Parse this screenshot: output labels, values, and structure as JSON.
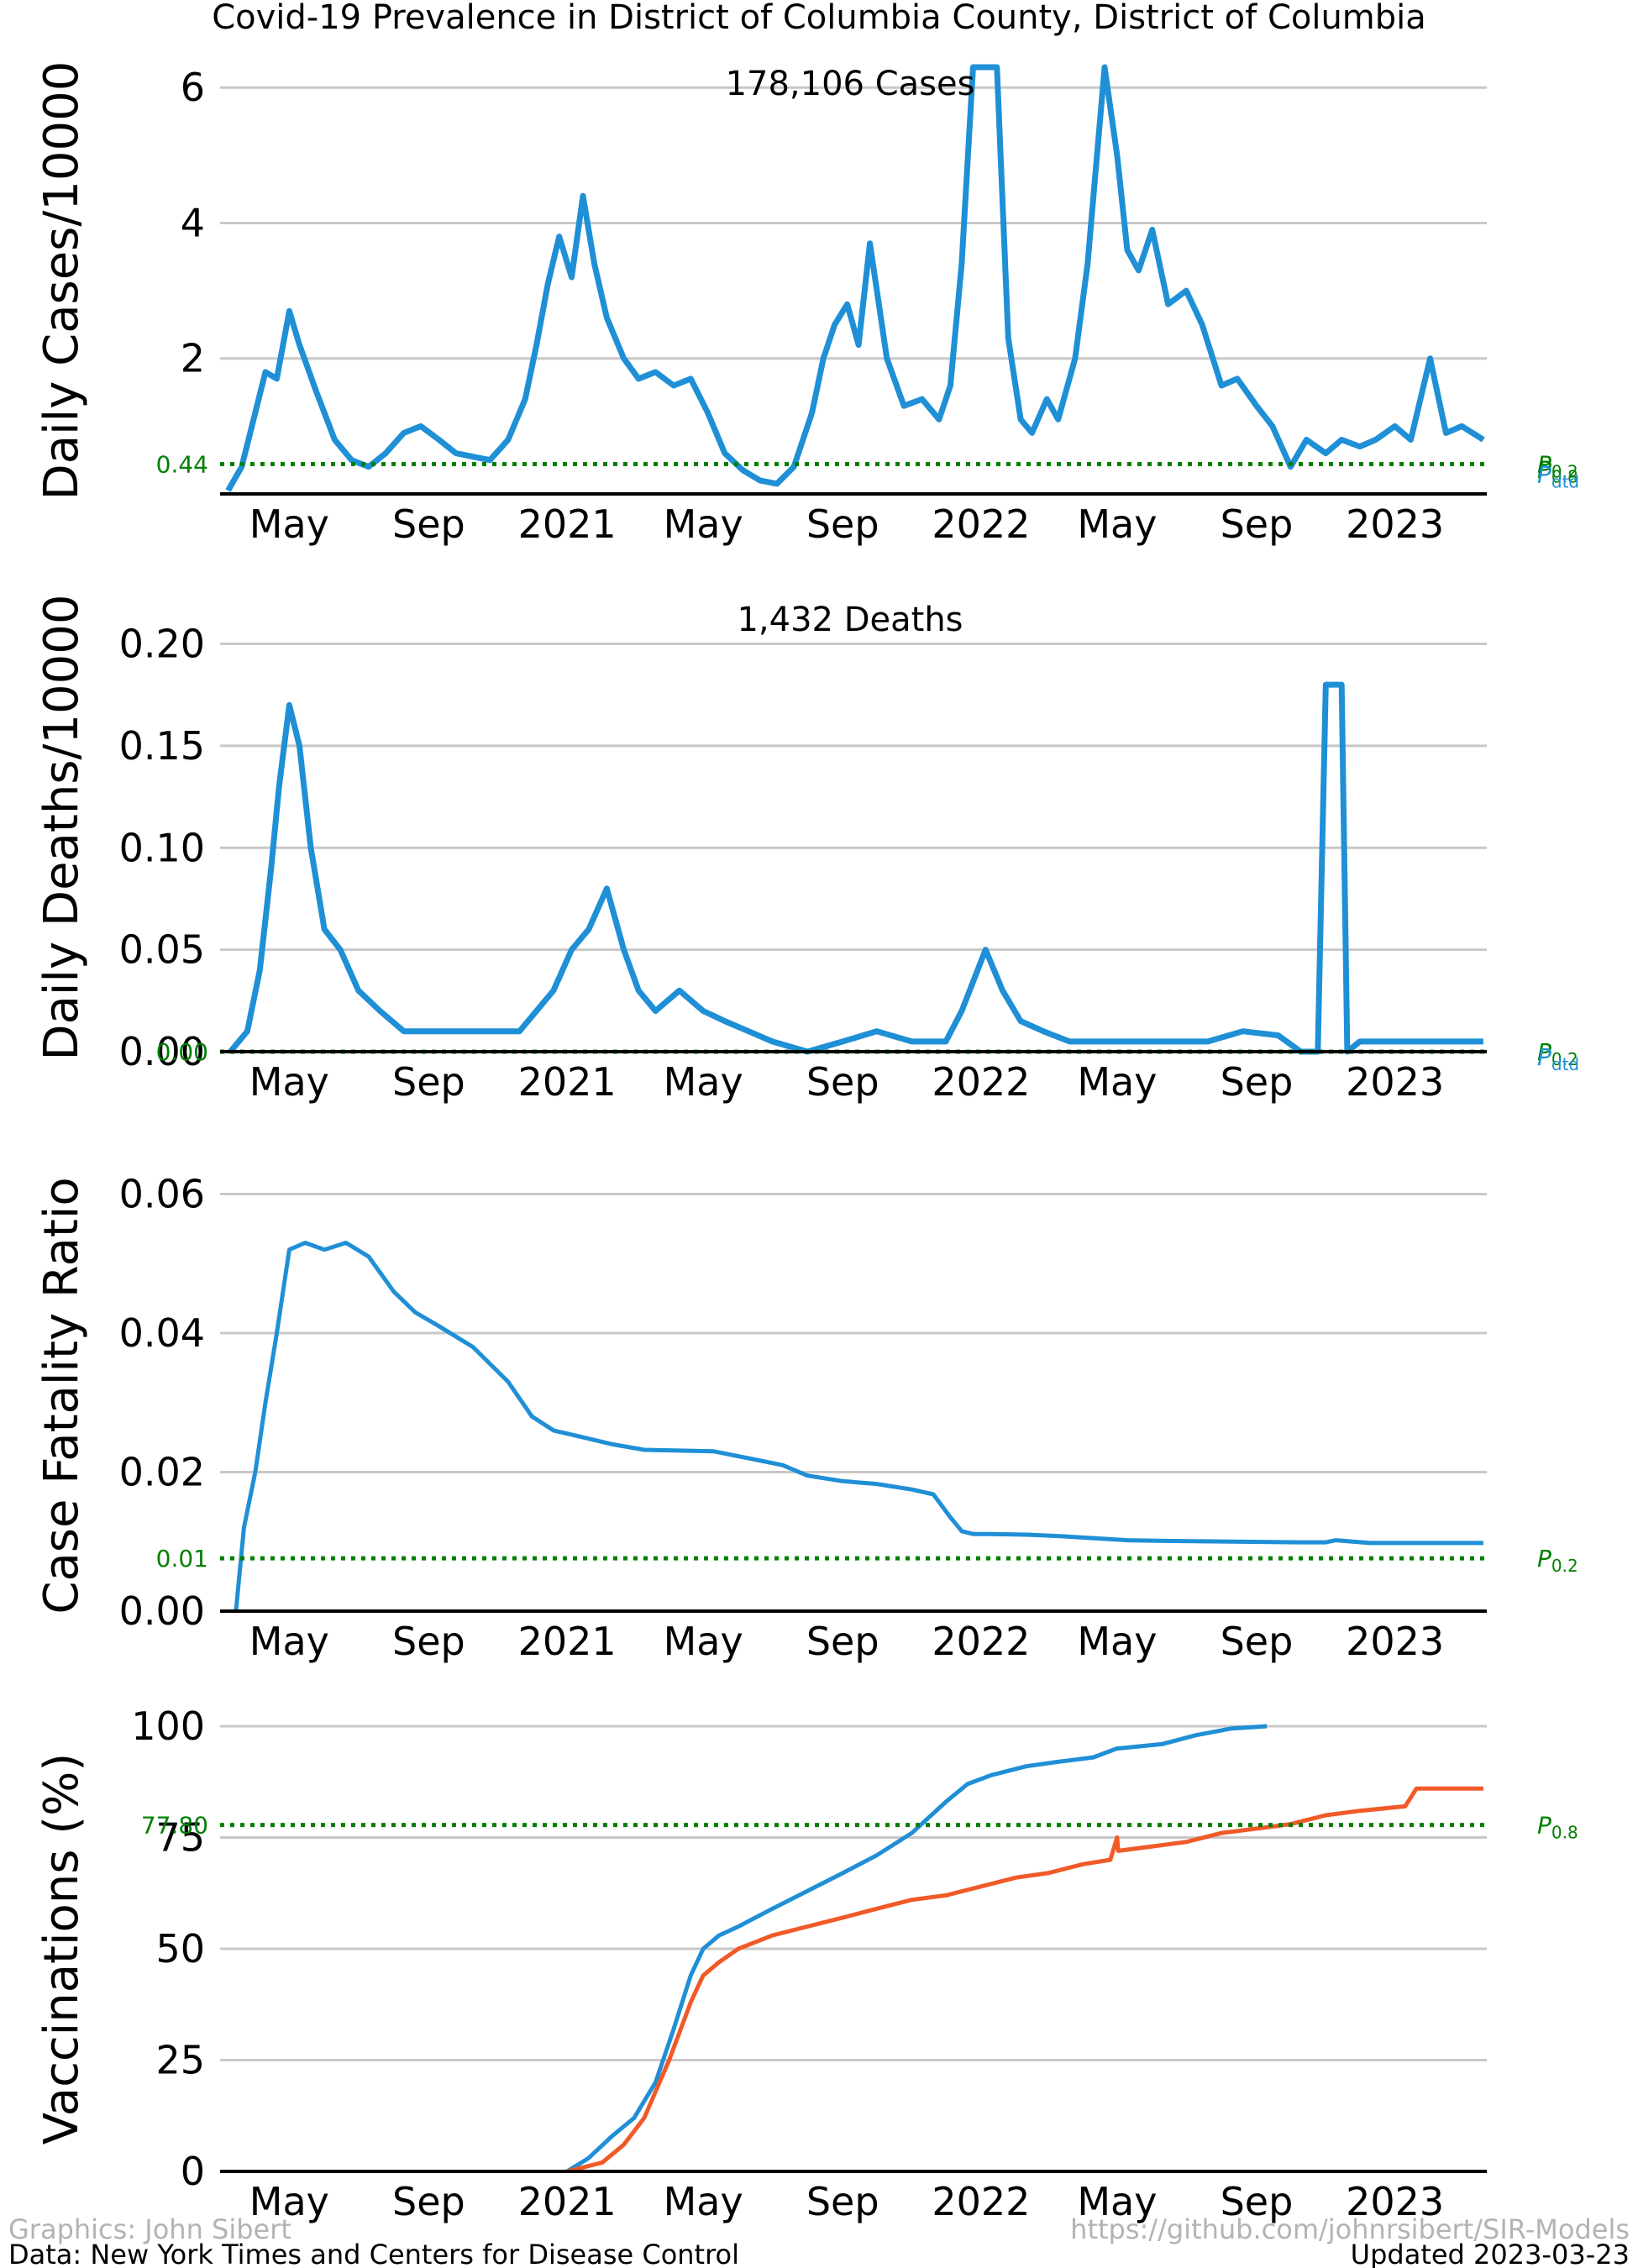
{
  "title": "Covid-19 Prevalence in District of Columbia County, District of Columbia",
  "footer": {
    "graphics": "Graphics: John Sibert",
    "data_source": "Data: New York Times and Centers for Disease Control",
    "url": "https://github.com/johnrsibert/SIR-Models",
    "updated": "Updated 2023-03-23"
  },
  "colors": {
    "primary": "#1f8fd6",
    "secondary": "#f05a28",
    "reference": "#008000",
    "grid": "#c8c8c8"
  },
  "x_axis": {
    "range": [
      "2020-03-01",
      "2023-03-23"
    ],
    "tick_dates": [
      "2020-05-01",
      "2020-09-01",
      "2021-01-01",
      "2021-05-01",
      "2021-09-01",
      "2022-01-01",
      "2022-05-01",
      "2022-09-01",
      "2023-01-01"
    ],
    "tick_labels": [
      "May",
      "Sep",
      "2021",
      "May",
      "Sep",
      "2022",
      "May",
      "Sep",
      "2023"
    ]
  },
  "chart_data": [
    {
      "type": "line",
      "ylabel": "Daily Cases/10000",
      "annotation": "178,106 Cases",
      "ylim": [
        0,
        6.3
      ],
      "yticks": [
        2,
        4,
        6
      ],
      "ytick_labels": [
        "2",
        "4",
        "6"
      ],
      "reference_line": {
        "value": 0.44,
        "label": "0.44"
      },
      "right_labels": [
        "P0.2",
        "P0.8",
        "Pdtd"
      ],
      "series": [
        {
          "style": "smoothed",
          "x": [
            "2020-03-08",
            "2020-03-20",
            "2020-04-01",
            "2020-04-10",
            "2020-04-20",
            "2020-05-01",
            "2020-05-10",
            "2020-05-25",
            "2020-06-10",
            "2020-06-25",
            "2020-07-10",
            "2020-07-25",
            "2020-08-10",
            "2020-08-25",
            "2020-09-10",
            "2020-09-25",
            "2020-10-10",
            "2020-10-25",
            "2020-11-10",
            "2020-11-25",
            "2020-12-05",
            "2020-12-15",
            "2020-12-25",
            "2021-01-05",
            "2021-01-15",
            "2021-01-25",
            "2021-02-05",
            "2021-02-20",
            "2021-03-05",
            "2021-03-20",
            "2021-04-05",
            "2021-04-20",
            "2021-05-05",
            "2021-05-20",
            "2021-06-05",
            "2021-06-20",
            "2021-07-05",
            "2021-07-20",
            "2021-08-05",
            "2021-08-15",
            "2021-08-25",
            "2021-09-05",
            "2021-09-15",
            "2021-09-25",
            "2021-10-10",
            "2021-10-25",
            "2021-11-10",
            "2021-11-25",
            "2021-12-05",
            "2021-12-15",
            "2021-12-25",
            "2022-01-05",
            "2022-01-15",
            "2022-01-25",
            "2022-02-05",
            "2022-02-15",
            "2022-02-28",
            "2022-03-10",
            "2022-03-25",
            "2022-04-05",
            "2022-04-20",
            "2022-05-01",
            "2022-05-10",
            "2022-05-20",
            "2022-06-01",
            "2022-06-15",
            "2022-07-01",
            "2022-07-15",
            "2022-08-01",
            "2022-08-15",
            "2022-09-01",
            "2022-09-15",
            "2022-10-01",
            "2022-10-15",
            "2022-11-01",
            "2022-11-15",
            "2022-12-01",
            "2022-12-15",
            "2023-01-01",
            "2023-01-15",
            "2023-02-01",
            "2023-02-15",
            "2023-03-01",
            "2023-03-20"
          ],
          "y": [
            0.05,
            0.4,
            1.2,
            1.8,
            1.7,
            2.7,
            2.2,
            1.5,
            0.8,
            0.5,
            0.4,
            0.6,
            0.9,
            1.0,
            0.8,
            0.6,
            0.55,
            0.5,
            0.8,
            1.4,
            2.2,
            3.1,
            3.8,
            3.2,
            4.4,
            3.4,
            2.6,
            2.0,
            1.7,
            1.8,
            1.6,
            1.7,
            1.2,
            0.6,
            0.35,
            0.2,
            0.15,
            0.4,
            1.2,
            2.0,
            2.5,
            2.8,
            2.2,
            3.7,
            2.0,
            1.3,
            1.4,
            1.1,
            1.6,
            3.4,
            6.3,
            6.3,
            6.3,
            2.3,
            1.1,
            0.9,
            1.4,
            1.1,
            2.0,
            3.4,
            6.3,
            5.0,
            3.6,
            3.3,
            3.9,
            2.8,
            3.0,
            2.5,
            1.6,
            1.7,
            1.3,
            1.0,
            0.4,
            0.8,
            0.6,
            0.8,
            0.7,
            0.8,
            1.0,
            0.8,
            2.0,
            0.9,
            1.0,
            0.8
          ]
        }
      ]
    },
    {
      "type": "line",
      "ylabel": "Daily Deaths/10000",
      "annotation": "1,432 Deaths",
      "ylim": [
        0,
        0.22
      ],
      "yticks": [
        0,
        0.05,
        0.1,
        0.15,
        0.2
      ],
      "ytick_labels": [
        "0.00",
        "0.05",
        "0.10",
        "0.15",
        "0.20"
      ],
      "reference_line": {
        "value": 0.0,
        "label": "0.00"
      },
      "right_labels": [
        "P0.2",
        "Pdtd"
      ],
      "series": [
        {
          "style": "smoothed",
          "x": [
            "2020-03-10",
            "2020-03-25",
            "2020-04-05",
            "2020-04-15",
            "2020-04-22",
            "2020-05-01",
            "2020-05-10",
            "2020-05-20",
            "2020-06-01",
            "2020-06-15",
            "2020-07-01",
            "2020-07-20",
            "2020-08-10",
            "2020-09-01",
            "2020-09-20",
            "2020-10-10",
            "2020-11-01",
            "2020-11-20",
            "2020-12-05",
            "2020-12-20",
            "2021-01-05",
            "2021-01-20",
            "2021-02-05",
            "2021-02-20",
            "2021-03-05",
            "2021-03-20",
            "2021-04-10",
            "2021-05-01",
            "2021-05-20",
            "2021-06-10",
            "2021-07-01",
            "2021-08-01",
            "2021-09-01",
            "2021-10-01",
            "2021-11-01",
            "2021-12-01",
            "2021-12-15",
            "2022-01-05",
            "2022-01-20",
            "2022-02-05",
            "2022-02-25",
            "2022-03-20",
            "2022-04-20",
            "2022-05-20",
            "2022-06-20",
            "2022-07-20",
            "2022-08-20",
            "2022-09-20",
            "2022-10-10",
            "2022-10-25",
            "2022-11-01",
            "2022-11-15",
            "2022-11-20",
            "2022-12-01",
            "2023-01-01",
            "2023-02-01",
            "2023-03-20"
          ],
          "y": [
            0.0,
            0.01,
            0.04,
            0.09,
            0.13,
            0.17,
            0.15,
            0.1,
            0.06,
            0.05,
            0.03,
            0.02,
            0.01,
            0.01,
            0.01,
            0.01,
            0.01,
            0.01,
            0.02,
            0.03,
            0.05,
            0.06,
            0.08,
            0.05,
            0.03,
            0.02,
            0.03,
            0.02,
            0.015,
            0.01,
            0.005,
            0.0,
            0.005,
            0.01,
            0.005,
            0.005,
            0.02,
            0.05,
            0.03,
            0.015,
            0.01,
            0.005,
            0.005,
            0.005,
            0.005,
            0.005,
            0.01,
            0.008,
            0.0,
            0.0,
            0.18,
            0.18,
            0.0,
            0.005,
            0.005,
            0.005,
            0.005
          ]
        }
      ]
    },
    {
      "type": "line",
      "ylabel": "Case Fatality Ratio",
      "ylim": [
        0,
        0.062
      ],
      "yticks": [
        0.0,
        0.02,
        0.04,
        0.06
      ],
      "ytick_labels": [
        "0.00",
        "0.02",
        "0.04",
        "0.06"
      ],
      "reference_line": {
        "value": 0.0076,
        "label": "0.01"
      },
      "right_labels": [
        "P0.2"
      ],
      "series": [
        {
          "x": [
            "2020-03-15",
            "2020-03-22",
            "2020-04-01",
            "2020-04-10",
            "2020-04-20",
            "2020-05-01",
            "2020-05-15",
            "2020-06-01",
            "2020-06-20",
            "2020-07-10",
            "2020-08-01",
            "2020-08-20",
            "2020-09-10",
            "2020-10-10",
            "2020-11-10",
            "2020-12-01",
            "2020-12-20",
            "2021-01-15",
            "2021-02-10",
            "2021-03-10",
            "2021-04-10",
            "2021-05-10",
            "2021-06-10",
            "2021-07-10",
            "2021-08-01",
            "2021-09-01",
            "2021-10-01",
            "2021-11-01",
            "2021-11-20",
            "2021-12-05",
            "2021-12-15",
            "2021-12-25",
            "2022-01-10",
            "2022-02-10",
            "2022-03-10",
            "2022-04-10",
            "2022-05-10",
            "2022-06-10",
            "2022-08-10",
            "2022-10-10",
            "2022-11-01",
            "2022-11-10",
            "2022-12-10",
            "2023-01-10",
            "2023-03-20"
          ],
          "y": [
            0.0,
            0.012,
            0.02,
            0.03,
            0.04,
            0.052,
            0.053,
            0.052,
            0.053,
            0.051,
            0.046,
            0.043,
            0.041,
            0.038,
            0.033,
            0.028,
            0.026,
            0.025,
            0.024,
            0.0232,
            0.0231,
            0.023,
            0.022,
            0.021,
            0.0195,
            0.0187,
            0.0183,
            0.0175,
            0.0168,
            0.0135,
            0.0115,
            0.0111,
            0.0111,
            0.011,
            0.0108,
            0.0105,
            0.0102,
            0.0101,
            0.01,
            0.0099,
            0.0099,
            0.0102,
            0.0098,
            0.0098,
            0.0098
          ]
        }
      ]
    },
    {
      "type": "line",
      "ylabel": "Vaccinations (%)",
      "ylim": [
        0,
        100
      ],
      "yticks": [
        0,
        25,
        50,
        75,
        100
      ],
      "ytick_labels": [
        "0",
        "25",
        "50",
        "75",
        "100"
      ],
      "reference_line": {
        "value": 77.8,
        "label": "77.80"
      },
      "right_labels": [
        "P0.8"
      ],
      "series": [
        {
          "color_key": "primary",
          "x": [
            "2021-01-01",
            "2021-01-20",
            "2021-02-10",
            "2021-03-01",
            "2021-03-20",
            "2021-04-05",
            "2021-04-20",
            "2021-05-01",
            "2021-05-15",
            "2021-06-01",
            "2021-07-01",
            "2021-08-01",
            "2021-09-01",
            "2021-10-01",
            "2021-11-01",
            "2021-12-01",
            "2021-12-20",
            "2022-01-10",
            "2022-02-10",
            "2022-03-10",
            "2022-04-10",
            "2022-05-01",
            "2022-05-02",
            "2022-06-10",
            "2022-07-10",
            "2022-08-10",
            "2022-09-10"
          ],
          "y": [
            0,
            3,
            8,
            12,
            20,
            32,
            44,
            50,
            53,
            55,
            59,
            63,
            67,
            71,
            76,
            83,
            87,
            89,
            91,
            92,
            93,
            95,
            95,
            96,
            98,
            99.5,
            100
          ]
        },
        {
          "color_key": "secondary",
          "x": [
            "2021-01-01",
            "2021-02-01",
            "2021-02-20",
            "2021-03-10",
            "2021-04-01",
            "2021-04-20",
            "2021-05-01",
            "2021-05-15",
            "2021-06-01",
            "2021-07-01",
            "2021-08-01",
            "2021-09-01",
            "2021-10-01",
            "2021-11-01",
            "2021-12-01",
            "2022-01-01",
            "2022-02-01",
            "2022-03-01",
            "2022-04-01",
            "2022-04-25",
            "2022-05-01",
            "2022-05-02",
            "2022-06-01",
            "2022-07-01",
            "2022-08-01",
            "2022-09-01",
            "2022-10-01",
            "2022-11-01",
            "2022-12-01",
            "2023-01-10",
            "2023-01-20",
            "2023-03-20"
          ],
          "y": [
            0,
            2,
            6,
            12,
            25,
            38,
            44,
            47,
            50,
            53,
            55,
            57,
            59,
            61,
            62,
            64,
            66,
            67,
            69,
            70,
            75,
            72,
            73,
            74,
            76,
            77,
            78,
            80,
            81,
            82,
            86,
            86
          ]
        }
      ]
    }
  ]
}
